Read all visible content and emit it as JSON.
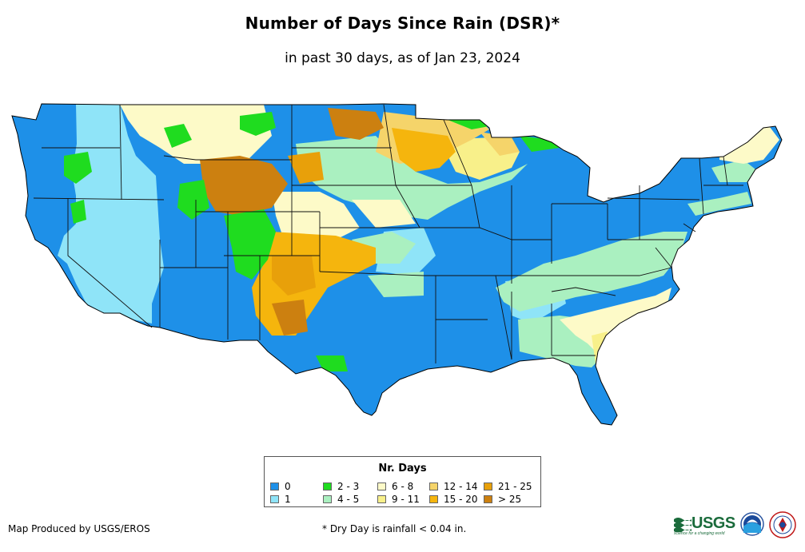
{
  "header": {
    "title": "Number of Days Since Rain (DSR)*",
    "subtitle": "in past 30 days, as of Jan 23, 2024"
  },
  "legend": {
    "title": "Nr. Days",
    "items": [
      {
        "label": "0",
        "color": "#1e90e8"
      },
      {
        "label": "1",
        "color": "#8fe4f8"
      },
      {
        "label": "2 - 3",
        "color": "#1fdc1f"
      },
      {
        "label": "4 - 5",
        "color": "#aaf0c0"
      },
      {
        "label": "6 - 8",
        "color": "#fdfac8"
      },
      {
        "label": "9 - 11",
        "color": "#f8f08a"
      },
      {
        "label": "12 - 14",
        "color": "#f5d46a"
      },
      {
        "label": "15 - 20",
        "color": "#f5b50d"
      },
      {
        "label": "21 - 25",
        "color": "#e8a00a"
      },
      {
        "label": "> 25",
        "color": "#cc8010"
      }
    ]
  },
  "footer": {
    "credit": "Map Produced by USGS/EROS",
    "footnote": "* Dry Day is rainfall < 0.04 in.",
    "usgs_logo_text": "USGS",
    "usgs_tagline": "science for a changing world"
  },
  "logos": {
    "usgs": "usgs-logo",
    "noaa": "noaa-logo",
    "nws": "national-weather-service-logo"
  }
}
